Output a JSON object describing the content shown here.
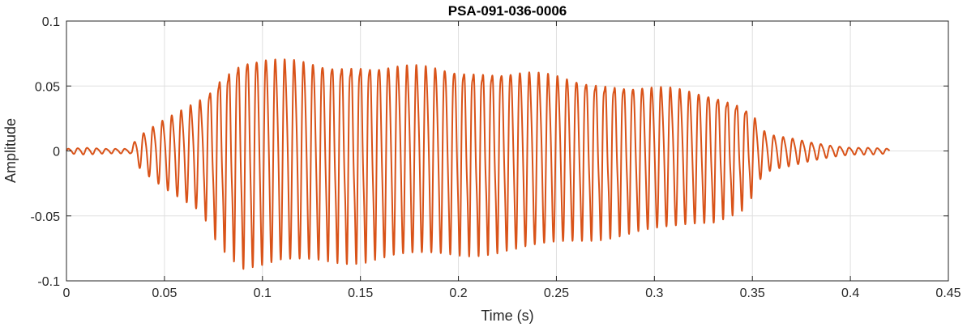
{
  "chart_data": {
    "type": "line",
    "title": "PSA-091-036-0006",
    "xlabel": "Time (s)",
    "ylabel": "Amplitude",
    "xlim": [
      0,
      0.45
    ],
    "ylim": [
      -0.1,
      0.1
    ],
    "xticks": [
      0,
      0.05,
      0.1,
      0.15,
      0.2,
      0.25,
      0.3,
      0.35,
      0.4,
      0.45
    ],
    "xtick_labels": [
      "0",
      "0.05",
      "0.1",
      "0.15",
      "0.2",
      "0.25",
      "0.3",
      "0.35",
      "0.4",
      "0.45"
    ],
    "yticks": [
      -0.1,
      -0.05,
      0,
      0.05,
      0.1
    ],
    "ytick_labels": [
      "-0.1",
      "-0.05",
      "0",
      "0.05",
      "0.1"
    ],
    "grid": true,
    "line_color": "#D95319",
    "series": [
      {
        "signal": "oscillating waveform",
        "x_range": [
          0,
          0.42
        ],
        "cycle_period_s": 0.0048,
        "envelope": {
          "t": [
            0,
            0.01,
            0.02,
            0.033,
            0.035,
            0.04,
            0.05,
            0.06,
            0.07,
            0.075,
            0.08,
            0.09,
            0.1,
            0.11,
            0.13,
            0.15,
            0.17,
            0.2,
            0.23,
            0.26,
            0.29,
            0.31,
            0.33,
            0.345,
            0.35,
            0.355,
            0.36,
            0.37,
            0.38,
            0.39,
            0.4,
            0.41,
            0.42
          ],
          "amplitude": [
            0.002,
            0.003,
            0.002,
            0.002,
            0.01,
            0.018,
            0.03,
            0.04,
            0.05,
            0.065,
            0.075,
            0.09,
            0.09,
            0.087,
            0.085,
            0.085,
            0.082,
            0.08,
            0.077,
            0.07,
            0.063,
            0.06,
            0.055,
            0.045,
            0.035,
            0.02,
            0.015,
            0.012,
            0.008,
            0.005,
            0.003,
            0.003,
            0.002
          ]
        }
      }
    ]
  }
}
